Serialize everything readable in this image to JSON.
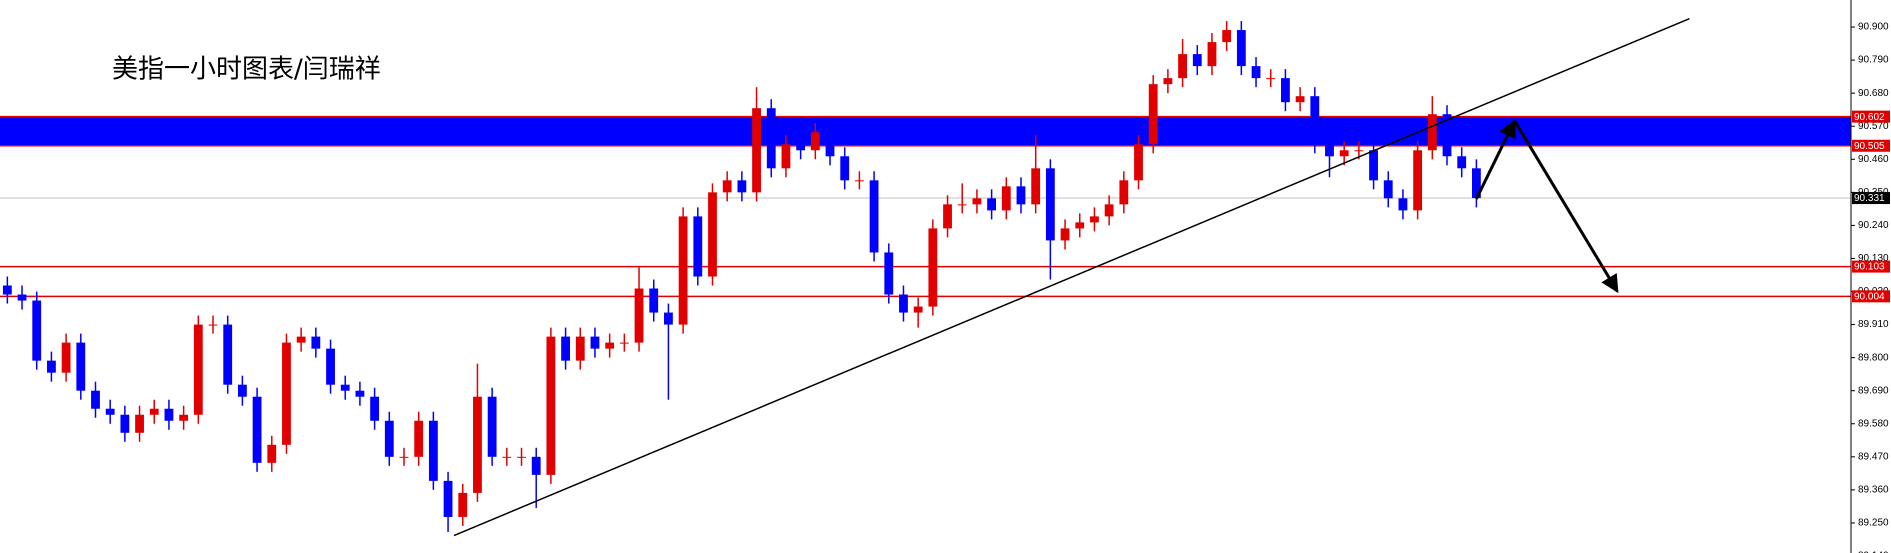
{
  "chart_data": {
    "type": "candlestick",
    "title": "美指一小时图表/闫瑞祥",
    "up_color": "#e00000",
    "down_color": "#0000ff",
    "xlim": [
      -0.5,
      125.5
    ],
    "ylim": [
      89.15,
      90.99
    ],
    "yticks": [
      {
        "value": 90.9,
        "label": "90.900"
      },
      {
        "value": 90.79,
        "label": "90.790"
      },
      {
        "value": 90.68,
        "label": "90.680"
      },
      {
        "value": 90.57,
        "label": "90.570"
      },
      {
        "value": 90.46,
        "label": "90.460"
      },
      {
        "value": 90.35,
        "label": "90.350"
      },
      {
        "value": 90.24,
        "label": "90.240"
      },
      {
        "value": 90.13,
        "label": "90.130"
      },
      {
        "value": 90.02,
        "label": "90.020"
      },
      {
        "value": 89.91,
        "label": "89.910"
      },
      {
        "value": 89.8,
        "label": "89.800"
      },
      {
        "value": 89.69,
        "label": "89.690"
      },
      {
        "value": 89.58,
        "label": "89.580"
      },
      {
        "value": 89.47,
        "label": "89.470"
      },
      {
        "value": 89.36,
        "label": "89.360"
      },
      {
        "value": 89.25,
        "label": "89.250"
      },
      {
        "value": 89.14,
        "label": "89.140"
      }
    ],
    "open": [
      90.04,
      90.01,
      89.99,
      89.79,
      89.75,
      89.85,
      89.69,
      89.63,
      89.61,
      89.55,
      89.61,
      89.63,
      89.59,
      89.61,
      89.91,
      89.91,
      89.71,
      89.67,
      89.45,
      89.51,
      89.85,
      89.87,
      89.83,
      89.71,
      89.69,
      89.67,
      89.59,
      89.47,
      89.47,
      89.59,
      89.39,
      89.27,
      89.35,
      89.67,
      89.47,
      89.47,
      89.47,
      89.41,
      89.87,
      89.79,
      89.87,
      89.83,
      89.85,
      89.85,
      90.03,
      89.95,
      89.91,
      90.27,
      90.07,
      90.35,
      90.39,
      90.35,
      90.63,
      90.43,
      90.51,
      90.49,
      90.55,
      90.47,
      90.39,
      90.39,
      90.15,
      90.01,
      89.95,
      89.97,
      90.23,
      90.31,
      90.31,
      90.33,
      90.29,
      90.37,
      90.31,
      90.43,
      90.19,
      90.23,
      90.25,
      90.27,
      90.31,
      90.39,
      90.51,
      90.71,
      90.73,
      90.81,
      90.77,
      90.85,
      90.89,
      90.77,
      90.73,
      90.73,
      90.65,
      90.67,
      90.51,
      90.47,
      90.49,
      90.49,
      90.39,
      90.33,
      90.29,
      90.49,
      90.61,
      90.47,
      90.43
    ],
    "high": [
      90.07,
      90.04,
      90.02,
      89.82,
      89.88,
      89.88,
      89.72,
      89.66,
      89.64,
      89.64,
      89.66,
      89.66,
      89.64,
      89.94,
      89.94,
      89.94,
      89.74,
      89.7,
      89.54,
      89.88,
      89.9,
      89.9,
      89.86,
      89.74,
      89.72,
      89.7,
      89.62,
      89.5,
      89.62,
      89.62,
      89.42,
      89.38,
      89.78,
      89.7,
      89.5,
      89.5,
      89.5,
      89.9,
      89.9,
      89.9,
      89.9,
      89.88,
      89.88,
      90.1,
      90.06,
      89.98,
      90.3,
      90.3,
      90.38,
      90.42,
      90.42,
      90.7,
      90.66,
      90.54,
      90.54,
      90.58,
      90.58,
      90.5,
      90.42,
      90.42,
      90.18,
      90.04,
      90.0,
      90.26,
      90.34,
      90.38,
      90.36,
      90.36,
      90.4,
      90.4,
      90.54,
      90.46,
      90.26,
      90.28,
      90.3,
      90.34,
      90.42,
      90.54,
      90.74,
      90.76,
      90.86,
      90.84,
      90.88,
      90.92,
      90.92,
      90.8,
      90.76,
      90.76,
      90.7,
      90.7,
      90.54,
      90.52,
      90.52,
      90.52,
      90.42,
      90.36,
      90.52,
      90.67,
      90.64,
      90.5,
      90.46
    ],
    "low": [
      89.98,
      89.96,
      89.76,
      89.72,
      89.72,
      89.66,
      89.6,
      89.58,
      89.52,
      89.52,
      89.58,
      89.56,
      89.56,
      89.58,
      89.88,
      89.68,
      89.64,
      89.42,
      89.42,
      89.48,
      89.82,
      89.8,
      89.68,
      89.66,
      89.64,
      89.56,
      89.44,
      89.44,
      89.44,
      89.36,
      89.22,
      89.24,
      89.32,
      89.44,
      89.44,
      89.44,
      89.3,
      89.38,
      89.76,
      89.76,
      89.8,
      89.8,
      89.82,
      89.82,
      89.92,
      89.66,
      89.88,
      90.04,
      90.04,
      90.32,
      90.32,
      90.32,
      90.4,
      90.4,
      90.46,
      90.46,
      90.44,
      90.36,
      90.36,
      90.12,
      89.98,
      89.92,
      89.9,
      89.94,
      90.2,
      90.28,
      90.28,
      90.26,
      90.26,
      90.28,
      90.28,
      90.06,
      90.16,
      90.2,
      90.22,
      90.24,
      90.28,
      90.36,
      90.48,
      90.68,
      90.7,
      90.74,
      90.74,
      90.82,
      90.74,
      90.7,
      90.7,
      90.62,
      90.62,
      90.48,
      90.4,
      90.44,
      90.46,
      90.36,
      90.3,
      90.26,
      90.26,
      90.46,
      90.44,
      90.4,
      90.3
    ],
    "close": [
      90.01,
      89.99,
      89.79,
      89.75,
      89.85,
      89.69,
      89.63,
      89.61,
      89.55,
      89.61,
      89.63,
      89.59,
      89.61,
      89.91,
      89.91,
      89.71,
      89.67,
      89.45,
      89.51,
      89.85,
      89.87,
      89.83,
      89.71,
      89.69,
      89.67,
      89.59,
      89.47,
      89.47,
      89.59,
      89.39,
      89.27,
      89.35,
      89.67,
      89.47,
      89.47,
      89.47,
      89.41,
      89.87,
      89.79,
      89.87,
      89.83,
      89.85,
      89.85,
      90.03,
      89.95,
      89.91,
      90.27,
      90.07,
      90.35,
      90.39,
      90.35,
      90.63,
      90.43,
      90.51,
      90.49,
      90.55,
      90.47,
      90.39,
      90.39,
      90.15,
      90.01,
      89.95,
      89.97,
      90.23,
      90.31,
      90.31,
      90.33,
      90.29,
      90.37,
      90.31,
      90.43,
      90.19,
      90.23,
      90.25,
      90.27,
      90.31,
      90.39,
      90.51,
      90.71,
      90.73,
      90.81,
      90.77,
      90.85,
      90.89,
      90.77,
      90.73,
      90.73,
      90.65,
      90.67,
      90.51,
      90.47,
      90.49,
      90.49,
      90.39,
      90.33,
      90.29,
      90.49,
      90.61,
      90.47,
      90.43,
      90.331
    ],
    "zones": [
      {
        "values": [
          90.505,
          90.602
        ],
        "color": "#0000ff",
        "border_color": "#e00000"
      }
    ],
    "levels": [
      {
        "value": 90.331,
        "color": "#c0c0c0",
        "label_color": "#000000"
      },
      {
        "value": 90.103,
        "color": "#e00000",
        "label_color": "#e00000"
      },
      {
        "value": 90.004,
        "color": "#e00000",
        "label_color": "#e00000"
      }
    ],
    "trendline": {
      "x": [
        30.4,
        114.5
      ],
      "y": [
        89.208,
        90.928
      ],
      "color": "#000000"
    },
    "arrow": {
      "x": [
        100,
        102.6,
        109.6
      ],
      "y": [
        90.328,
        90.588,
        90.02
      ],
      "color": "#000000"
    }
  }
}
